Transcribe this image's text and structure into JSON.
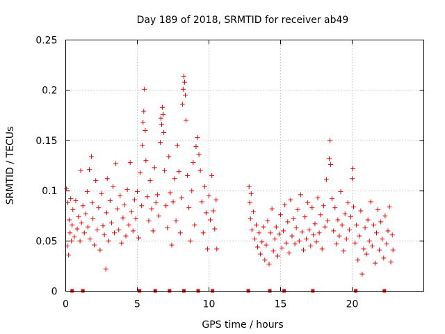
{
  "chart_data": {
    "type": "scatter",
    "title": "Day 189 of 2018, SRMTID for receiver ab49",
    "xlabel": "GPS time / hours",
    "ylabel": "SRMTID / TECUs",
    "xlim": [
      0,
      25
    ],
    "ylim": [
      0,
      0.25
    ],
    "xticks": [
      0,
      5,
      10,
      15,
      20
    ],
    "xtick_labels": [
      "0",
      "5",
      "10",
      "15",
      "20"
    ],
    "yticks": [
      0,
      0.05,
      0.1,
      0.15,
      0.2,
      0.25
    ],
    "ytick_labels": [
      "0",
      "0.05",
      "0.1",
      "0.15",
      "0.2",
      "0.25"
    ],
    "grid": true,
    "marker": "+",
    "color": "#e00000",
    "series": [
      {
        "name": "SRMTID",
        "points": [
          [
            0.05,
            0.102
          ],
          [
            0.1,
            0.045
          ],
          [
            0.15,
            0.088
          ],
          [
            0.2,
            0.036
          ],
          [
            0.25,
            0.071
          ],
          [
            0.3,
            0.058
          ],
          [
            0.35,
            0.092
          ],
          [
            0.4,
            0.05
          ],
          [
            0.45,
            0.066
          ],
          [
            0.5,
            0.081
          ],
          [
            0.6,
            0.054
          ],
          [
            0.7,
            0.09
          ],
          [
            0.8,
            0.062
          ],
          [
            0.9,
            0.074
          ],
          [
            1.0,
            0.05
          ],
          [
            1.05,
            0.12
          ],
          [
            1.1,
            0.068
          ],
          [
            1.2,
            0.085
          ],
          [
            1.3,
            0.058
          ],
          [
            1.4,
            0.077
          ],
          [
            1.5,
            0.099
          ],
          [
            1.55,
            0.064
          ],
          [
            1.65,
            0.121
          ],
          [
            1.7,
            0.052
          ],
          [
            1.8,
            0.134
          ],
          [
            1.85,
            0.088
          ],
          [
            1.9,
            0.072
          ],
          [
            2.0,
            0.046
          ],
          [
            2.1,
            0.11
          ],
          [
            2.2,
            0.061
          ],
          [
            2.3,
            0.083
          ],
          [
            2.4,
            0.041
          ],
          [
            2.5,
            0.097
          ],
          [
            2.6,
            0.065
          ],
          [
            2.7,
            0.056
          ],
          [
            2.8,
            0.022
          ],
          [
            2.85,
            0.078
          ],
          [
            2.9,
            0.112
          ],
          [
            3.0,
            0.05
          ],
          [
            3.1,
            0.09
          ],
          [
            3.2,
            0.068
          ],
          [
            3.3,
            0.104
          ],
          [
            3.4,
            0.058
          ],
          [
            3.5,
            0.127
          ],
          [
            3.6,
            0.082
          ],
          [
            3.7,
            0.061
          ],
          [
            3.8,
            0.095
          ],
          [
            3.9,
            0.048
          ],
          [
            4.0,
            0.073
          ],
          [
            4.1,
            0.086
          ],
          [
            4.2,
            0.055
          ],
          [
            4.3,
            0.101
          ],
          [
            4.4,
            0.066
          ],
          [
            4.5,
            0.128
          ],
          [
            4.6,
            0.079
          ],
          [
            4.7,
            0.06
          ],
          [
            4.8,
            0.091
          ],
          [
            4.9,
            0.072
          ],
          [
            5.0,
            0.099
          ],
          [
            5.1,
            0.053
          ],
          [
            5.2,
            0.118
          ],
          [
            5.3,
            0.085
          ],
          [
            5.35,
            0.145
          ],
          [
            5.4,
            0.168
          ],
          [
            5.45,
            0.179
          ],
          [
            5.5,
            0.201
          ],
          [
            5.55,
            0.16
          ],
          [
            5.6,
            0.13
          ],
          [
            5.7,
            0.094
          ],
          [
            5.8,
            0.07
          ],
          [
            5.9,
            0.11
          ],
          [
            6.0,
            0.082
          ],
          [
            6.1,
            0.06
          ],
          [
            6.2,
            0.123
          ],
          [
            6.3,
            0.088
          ],
          [
            6.4,
            0.096
          ],
          [
            6.5,
            0.075
          ],
          [
            6.6,
            0.148
          ],
          [
            6.65,
            0.172
          ],
          [
            6.7,
            0.166
          ],
          [
            6.75,
            0.183
          ],
          [
            6.8,
            0.176
          ],
          [
            6.85,
            0.158
          ],
          [
            6.9,
            0.12
          ],
          [
            7.0,
            0.085
          ],
          [
            7.1,
            0.063
          ],
          [
            7.2,
            0.134
          ],
          [
            7.3,
            0.098
          ],
          [
            7.4,
            0.046
          ],
          [
            7.5,
            0.089
          ],
          [
            7.6,
            0.112
          ],
          [
            7.7,
            0.07
          ],
          [
            7.8,
            0.145
          ],
          [
            7.9,
            0.119
          ],
          [
            8.0,
            0.058
          ],
          [
            8.1,
            0.093
          ],
          [
            8.15,
            0.186
          ],
          [
            8.2,
            0.201
          ],
          [
            8.25,
            0.214
          ],
          [
            8.3,
            0.208
          ],
          [
            8.35,
            0.195
          ],
          [
            8.4,
            0.17
          ],
          [
            8.5,
            0.115
          ],
          [
            8.6,
            0.083
          ],
          [
            8.7,
            0.05
          ],
          [
            8.8,
            0.1
          ],
          [
            8.9,
            0.128
          ],
          [
            9.0,
            0.066
          ],
          [
            9.1,
            0.144
          ],
          [
            9.2,
            0.153
          ],
          [
            9.3,
            0.136
          ],
          [
            9.4,
            0.12
          ],
          [
            9.5,
            0.089
          ],
          [
            9.6,
            0.058
          ],
          [
            9.7,
            0.104
          ],
          [
            9.8,
            0.078
          ],
          [
            9.9,
            0.042
          ],
          [
            10.0,
            0.095
          ],
          [
            10.1,
            0.071
          ],
          [
            10.2,
            0.115
          ],
          [
            10.3,
            0.08
          ],
          [
            10.4,
            0.062
          ],
          [
            10.5,
            0.091
          ],
          [
            10.55,
            0.042
          ],
          [
            12.8,
            0.104
          ],
          [
            12.85,
            0.088
          ],
          [
            12.9,
            0.072
          ],
          [
            12.95,
            0.097
          ],
          [
            13.0,
            0.061
          ],
          [
            13.1,
            0.079
          ],
          [
            13.2,
            0.052
          ],
          [
            13.3,
            0.066
          ],
          [
            13.4,
            0.044
          ],
          [
            13.5,
            0.058
          ],
          [
            13.6,
            0.037
          ],
          [
            13.7,
            0.049
          ],
          [
            13.8,
            0.064
          ],
          [
            13.9,
            0.031
          ],
          [
            14.0,
            0.046
          ],
          [
            14.1,
            0.07
          ],
          [
            14.2,
            0.027
          ],
          [
            14.3,
            0.058
          ],
          [
            14.4,
            0.082
          ],
          [
            14.5,
            0.04
          ],
          [
            14.6,
            0.052
          ],
          [
            14.7,
            0.064
          ],
          [
            14.8,
            0.035
          ],
          [
            14.9,
            0.057
          ],
          [
            15.0,
            0.076
          ],
          [
            15.1,
            0.043
          ],
          [
            15.2,
            0.06
          ],
          [
            15.3,
            0.086
          ],
          [
            15.4,
            0.048
          ],
          [
            15.5,
            0.069
          ],
          [
            15.6,
            0.038
          ],
          [
            15.7,
            0.091
          ],
          [
            15.8,
            0.055
          ],
          [
            15.9,
            0.072
          ],
          [
            16.0,
            0.047
          ],
          [
            16.1,
            0.063
          ],
          [
            16.2,
            0.081
          ],
          [
            16.3,
            0.05
          ],
          [
            16.4,
            0.096
          ],
          [
            16.5,
            0.059
          ],
          [
            16.6,
            0.041
          ],
          [
            16.7,
            0.074
          ],
          [
            16.8,
            0.052
          ],
          [
            16.9,
            0.088
          ],
          [
            17.0,
            0.061
          ],
          [
            17.1,
            0.045
          ],
          [
            17.2,
            0.083
          ],
          [
            17.3,
            0.056
          ],
          [
            17.4,
            0.067
          ],
          [
            17.5,
            0.049
          ],
          [
            17.6,
            0.093
          ],
          [
            17.7,
            0.058
          ],
          [
            17.8,
            0.076
          ],
          [
            17.9,
            0.042
          ],
          [
            18.0,
            0.085
          ],
          [
            18.1,
            0.064
          ],
          [
            18.2,
            0.111
          ],
          [
            18.3,
            0.07
          ],
          [
            18.4,
            0.132
          ],
          [
            18.45,
            0.15
          ],
          [
            18.5,
            0.126
          ],
          [
            18.6,
            0.092
          ],
          [
            18.7,
            0.06
          ],
          [
            18.8,
            0.083
          ],
          [
            18.9,
            0.047
          ],
          [
            19.0,
            0.071
          ],
          [
            19.1,
            0.055
          ],
          [
            19.2,
            0.099
          ],
          [
            19.3,
            0.066
          ],
          [
            19.4,
            0.04
          ],
          [
            19.5,
            0.077
          ],
          [
            19.6,
            0.052
          ],
          [
            19.7,
            0.088
          ],
          [
            19.8,
            0.061
          ],
          [
            19.9,
            0.074
          ],
          [
            20.0,
            0.112
          ],
          [
            20.05,
            0.122
          ],
          [
            20.1,
            0.084
          ],
          [
            20.2,
            0.048
          ],
          [
            20.3,
            0.066
          ],
          [
            20.4,
            0.031
          ],
          [
            20.5,
            0.055
          ],
          [
            20.6,
            0.08
          ],
          [
            20.7,
            0.017
          ],
          [
            20.8,
            0.042
          ],
          [
            20.9,
            0.063
          ],
          [
            21.0,
            0.037
          ],
          [
            21.1,
            0.071
          ],
          [
            21.2,
            0.05
          ],
          [
            21.3,
            0.089
          ],
          [
            21.4,
            0.045
          ],
          [
            21.5,
            0.066
          ],
          [
            21.6,
            0.028
          ],
          [
            21.7,
            0.058
          ],
          [
            21.8,
            0.081
          ],
          [
            21.9,
            0.041
          ],
          [
            22.0,
            0.069
          ],
          [
            22.1,
            0.052
          ],
          [
            22.2,
            0.033
          ],
          [
            22.3,
            0.075
          ],
          [
            22.4,
            0.047
          ],
          [
            22.5,
            0.06
          ],
          [
            22.6,
            0.084
          ],
          [
            22.7,
            0.029
          ],
          [
            22.8,
            0.056
          ],
          [
            22.85,
            0.041
          ]
        ]
      }
    ],
    "baseline_markers": {
      "y": 0,
      "x": [
        0.45,
        1.2,
        5.15,
        6.25,
        7.25,
        8.25,
        9.25,
        10.25,
        12.75,
        14.25,
        15.25,
        17.25,
        20.25,
        22.25
      ]
    }
  }
}
